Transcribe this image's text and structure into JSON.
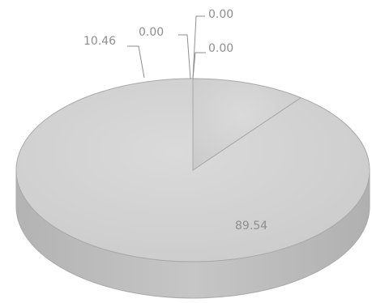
{
  "chart_data": {
    "type": "pie",
    "style": "3d",
    "values": [
      89.54,
      10.46,
      0.0,
      0.0,
      0.0
    ],
    "labels": [
      "89.54",
      "10.46",
      "0.00",
      "0.00",
      "0.00"
    ],
    "colors": {
      "top": "#d3d3d3",
      "side": "#bcbcbc",
      "edge": "#a9a9a9",
      "label": "#8e8e8e"
    }
  }
}
